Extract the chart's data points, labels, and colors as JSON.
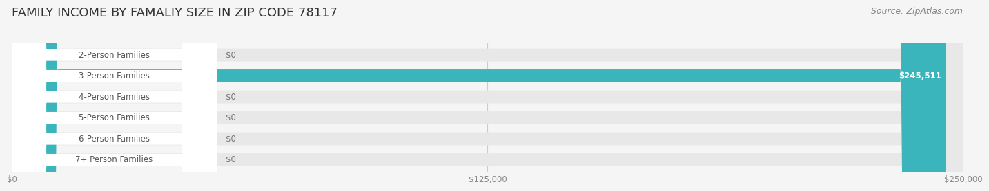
{
  "title": "FAMILY INCOME BY FAMALIY SIZE IN ZIP CODE 78117",
  "source": "Source: ZipAtlas.com",
  "categories": [
    "2-Person Families",
    "3-Person Families",
    "4-Person Families",
    "5-Person Families",
    "6-Person Families",
    "7+ Person Families"
  ],
  "values": [
    0,
    245511,
    0,
    0,
    0,
    0
  ],
  "bar_colors": [
    "#c9a8d4",
    "#3ab5bc",
    "#a8aee0",
    "#f4a0b5",
    "#f7c490",
    "#f4a8a8"
  ],
  "label_colors": [
    "#c9a8d4",
    "#3ab5bc",
    "#a8aee0",
    "#f4a0b5",
    "#f7c490",
    "#f4a8a8"
  ],
  "value_labels": [
    "$0",
    "$245,511",
    "$0",
    "$0",
    "$0",
    "$0"
  ],
  "xlim": [
    0,
    250000
  ],
  "xticks": [
    0,
    125000,
    250000
  ],
  "xtick_labels": [
    "$0",
    "$125,000",
    "$250,000"
  ],
  "bg_color": "#f5f5f5",
  "bar_bg_color": "#e8e8e8",
  "title_fontsize": 13,
  "source_fontsize": 9,
  "label_fontsize": 8.5,
  "value_fontsize": 8.5,
  "bar_height": 0.62
}
